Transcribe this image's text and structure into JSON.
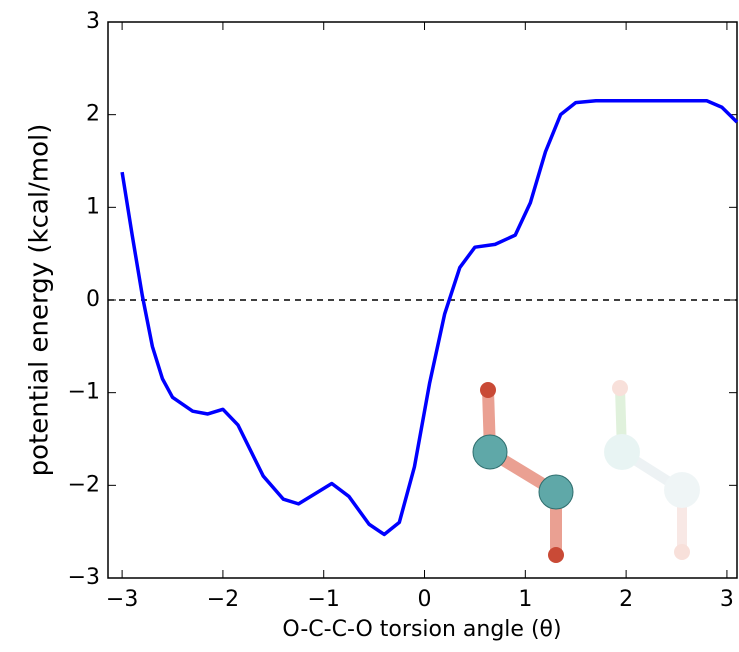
{
  "chart_data": {
    "type": "line",
    "xlabel": "O-C-C-O torsion angle (θ)",
    "ylabel": "potential energy (kcal/mol)",
    "x": [
      -3.0,
      -2.9,
      -2.8,
      -2.7,
      -2.6,
      -2.5,
      -2.3,
      -2.15,
      -2.0,
      -1.85,
      -1.6,
      -1.4,
      -1.25,
      -1.1,
      -0.92,
      -0.75,
      -0.55,
      -0.4,
      -0.25,
      -0.1,
      0.05,
      0.2,
      0.35,
      0.5,
      0.7,
      0.9,
      1.05,
      1.2,
      1.35,
      1.5,
      1.7,
      2.0,
      2.5,
      2.8,
      2.95,
      3.1
    ],
    "series": [
      {
        "color": "#0000ff",
        "values": [
          1.38,
          0.7,
          0.05,
          -0.5,
          -0.85,
          -1.05,
          -1.2,
          -1.23,
          -1.18,
          -1.35,
          -1.9,
          -2.15,
          -2.2,
          -2.1,
          -1.98,
          -2.12,
          -2.42,
          -2.53,
          -2.4,
          -1.8,
          -0.9,
          -0.15,
          0.35,
          0.57,
          0.6,
          0.7,
          1.05,
          1.6,
          2.0,
          2.13,
          2.15,
          2.15,
          2.15,
          2.15,
          2.08,
          1.92
        ]
      }
    ],
    "reference_line": 0,
    "xlim": [
      -3.14,
      3.1
    ],
    "ylim": [
      -3,
      3
    ],
    "xticks": [
      {
        "value": -3,
        "label": "−3"
      },
      {
        "value": -2,
        "label": "−2"
      },
      {
        "value": -1,
        "label": "−1"
      },
      0,
      1,
      2,
      3
    ],
    "yticks": [
      {
        "value": -3,
        "label": "−3"
      },
      {
        "value": -2,
        "label": "−2"
      },
      {
        "value": -1,
        "label": "−1"
      },
      0,
      1,
      2,
      3
    ]
  }
}
